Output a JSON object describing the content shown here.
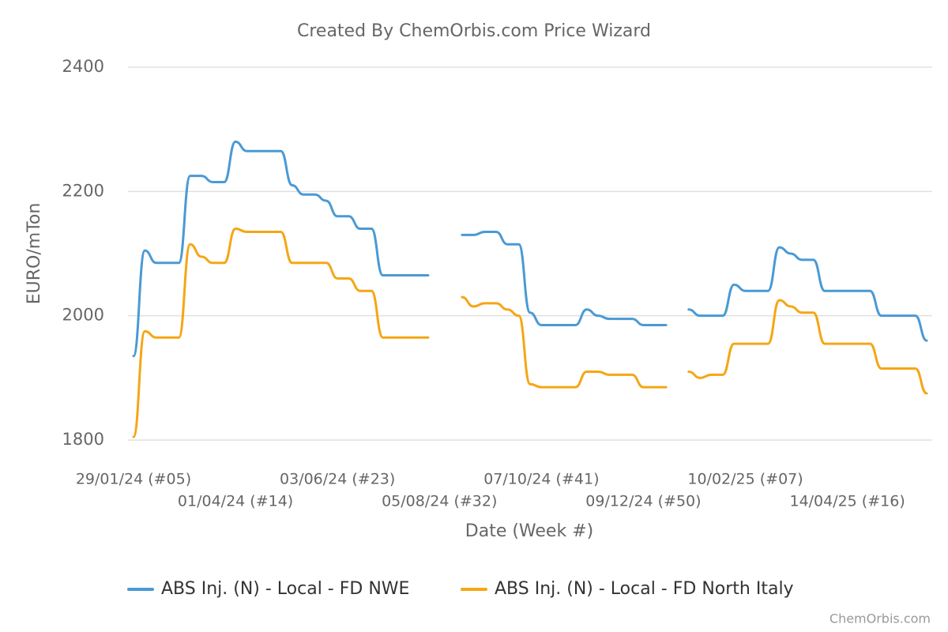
{
  "chart_data": {
    "type": "line",
    "title": "Created By ChemOrbis.com Price Wizard",
    "y_label": "EURO/mTon",
    "x_label": "Date (Week #)",
    "credit": "ChemOrbis.com",
    "categories": [
      "29/01/24 (#05)",
      null,
      null,
      null,
      null,
      null,
      null,
      null,
      null,
      "01/04/24 (#14)",
      null,
      null,
      null,
      null,
      null,
      null,
      null,
      null,
      "03/06/24 (#23)",
      null,
      null,
      null,
      null,
      null,
      null,
      null,
      null,
      "05/08/24 (#32)",
      null,
      null,
      null,
      null,
      null,
      null,
      null,
      null,
      "07/10/24 (#41)",
      null,
      null,
      null,
      null,
      null,
      null,
      null,
      null,
      "09/12/24 (#50)",
      null,
      null,
      null,
      null,
      null,
      null,
      null,
      null,
      "10/02/25 (#07)",
      null,
      null,
      null,
      null,
      null,
      null,
      null,
      null,
      "14/04/25 (#16)",
      null,
      null,
      null,
      null,
      null,
      null,
      null
    ],
    "series": [
      {
        "name": "ABS Inj. (N) - Local - FD NWE",
        "color": "#4a9ad4",
        "values": [
          1935,
          2105,
          2085,
          2085,
          2085,
          2225,
          2225,
          2215,
          2215,
          2280,
          2265,
          2265,
          2265,
          2265,
          2210,
          2195,
          2195,
          2185,
          2160,
          2160,
          2140,
          2140,
          2065,
          2065,
          2065,
          2065,
          2065,
          null,
          null,
          2130,
          2130,
          2135,
          2135,
          2115,
          2115,
          2005,
          1985,
          1985,
          1985,
          1985,
          2010,
          2000,
          1995,
          1995,
          1995,
          1985,
          1985,
          1985,
          null,
          2010,
          2000,
          2000,
          2000,
          2050,
          2040,
          2040,
          2040,
          2110,
          2100,
          2090,
          2090,
          2040,
          2040,
          2040,
          2040,
          2040,
          2000,
          2000,
          2000,
          2000,
          1960
        ]
      },
      {
        "name": "ABS Inj. (N) - Local - FD North Italy",
        "color": "#f5a615",
        "values": [
          1805,
          1975,
          1965,
          1965,
          1965,
          2115,
          2095,
          2085,
          2085,
          2140,
          2135,
          2135,
          2135,
          2135,
          2085,
          2085,
          2085,
          2085,
          2060,
          2060,
          2040,
          2040,
          1965,
          1965,
          1965,
          1965,
          1965,
          null,
          null,
          2030,
          2015,
          2020,
          2020,
          2010,
          2000,
          1890,
          1885,
          1885,
          1885,
          1885,
          1910,
          1910,
          1905,
          1905,
          1905,
          1885,
          1885,
          1885,
          null,
          1910,
          1900,
          1905,
          1905,
          1955,
          1955,
          1955,
          1955,
          2025,
          2015,
          2005,
          2005,
          1955,
          1955,
          1955,
          1955,
          1955,
          1915,
          1915,
          1915,
          1915,
          1875
        ]
      }
    ],
    "ylim": [
      1800,
      2400
    ],
    "yticks": [
      1800,
      2000,
      2200,
      2400
    ],
    "grid": true
  }
}
